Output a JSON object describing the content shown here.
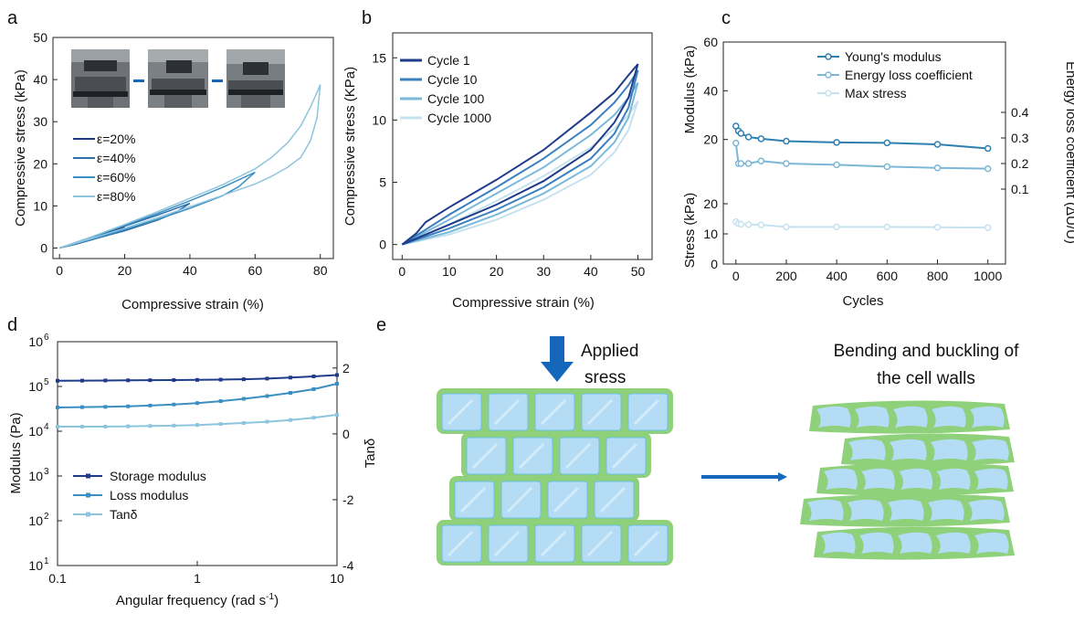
{
  "palette": {
    "navy": "#1f3b8a",
    "blue": "#2f6fae",
    "mid": "#3a8fc0",
    "light": "#8ec5de",
    "pale": "#c5e2ef",
    "arrow": "#1467bb",
    "cellFill": "#b5dcf5",
    "cellWall": "#8fd07a"
  },
  "panels": {
    "a": {
      "letter": "a",
      "image_label": "specimen-photos"
    },
    "b": {
      "letter": "b"
    },
    "c": {
      "letter": "c"
    },
    "d": {
      "letter": "d"
    },
    "e": {
      "letter": "e",
      "applied_line1": "Applied",
      "applied_line2": "sress",
      "bending_line1": "Bending and buckling of",
      "bending_line2": "the cell walls",
      "arrow_icon": "right-arrow-icon",
      "down_arrow_icon": "down-arrow-icon"
    }
  },
  "chart_data": [
    {
      "id": "a",
      "type": "line",
      "xlabel": "Compressive strain (%)",
      "ylabel": "Compressive stress (kPa)",
      "xlim": [
        -2,
        84
      ],
      "ylim": [
        -2.5,
        50
      ],
      "xticks": [
        0,
        20,
        40,
        60,
        80
      ],
      "yticks": [
        0,
        10,
        20,
        30,
        40,
        50
      ],
      "legend": "left",
      "series": [
        {
          "name": "ε=20%",
          "color": "#1f3b8a",
          "load": [
            [
              0,
              0
            ],
            [
              5,
              1.2
            ],
            [
              10,
              2.5
            ],
            [
              15,
              3.8
            ],
            [
              20,
              5.0
            ]
          ],
          "unload": [
            [
              20,
              5.0
            ],
            [
              15,
              3.3
            ],
            [
              10,
              2.0
            ],
            [
              5,
              0.9
            ],
            [
              0,
              0
            ]
          ]
        },
        {
          "name": "ε=40%",
          "color": "#2f6fae",
          "load": [
            [
              0,
              0
            ],
            [
              5,
              1.3
            ],
            [
              10,
              2.6
            ],
            [
              20,
              5.2
            ],
            [
              30,
              7.8
            ],
            [
              35,
              9.2
            ],
            [
              40,
              10.6
            ]
          ],
          "unload": [
            [
              40,
              10.6
            ],
            [
              35,
              8.2
            ],
            [
              30,
              6.6
            ],
            [
              20,
              4.1
            ],
            [
              10,
              2.0
            ],
            [
              5,
              1.0
            ],
            [
              0,
              0
            ]
          ]
        },
        {
          "name": "ε=60%",
          "color": "#3a8fc0",
          "load": [
            [
              0,
              0
            ],
            [
              10,
              2.6
            ],
            [
              20,
              5.4
            ],
            [
              30,
              8.2
            ],
            [
              40,
              11.2
            ],
            [
              50,
              14.4
            ],
            [
              55,
              16.2
            ],
            [
              60,
              18.0
            ]
          ],
          "unload": [
            [
              60,
              18.0
            ],
            [
              55,
              14.6
            ],
            [
              50,
              12.4
            ],
            [
              40,
              9.4
            ],
            [
              30,
              6.8
            ],
            [
              20,
              4.4
            ],
            [
              10,
              2.1
            ],
            [
              0,
              0
            ]
          ]
        },
        {
          "name": "ε=80%",
          "color": "#8ec5de",
          "load": [
            [
              0,
              0
            ],
            [
              10,
              2.7
            ],
            [
              20,
              5.6
            ],
            [
              30,
              8.6
            ],
            [
              40,
              11.8
            ],
            [
              50,
              15.0
            ],
            [
              60,
              18.8
            ],
            [
              65,
              21.5
            ],
            [
              70,
              25.0
            ],
            [
              74,
              29.0
            ],
            [
              77,
              33.5
            ],
            [
              79,
              37.0
            ],
            [
              80,
              38.8
            ]
          ],
          "unload": [
            [
              80,
              38.8
            ],
            [
              79,
              31.0
            ],
            [
              77,
              25.5
            ],
            [
              74,
              21.5
            ],
            [
              70,
              19.2
            ],
            [
              65,
              17.0
            ],
            [
              60,
              15.2
            ],
            [
              50,
              12.5
            ],
            [
              40,
              9.8
            ],
            [
              30,
              7.2
            ],
            [
              20,
              4.7
            ],
            [
              10,
              2.3
            ],
            [
              0,
              0
            ]
          ]
        }
      ]
    },
    {
      "id": "b",
      "type": "line",
      "xlabel": "Compressive strain (%)",
      "ylabel": "Compressive stress (KPa)",
      "xlim": [
        -2,
        53
      ],
      "ylim": [
        -1.2,
        17
      ],
      "xticks": [
        0,
        10,
        20,
        30,
        40,
        50
      ],
      "yticks": [
        0,
        5,
        10,
        15
      ],
      "legend": "top-left",
      "series": [
        {
          "name": "Cycle 1",
          "color": "#1f3b8a",
          "load": [
            [
              0,
              0
            ],
            [
              3,
              0.9
            ],
            [
              5,
              1.8
            ],
            [
              10,
              3.0
            ],
            [
              20,
              5.2
            ],
            [
              30,
              7.6
            ],
            [
              40,
              10.6
            ],
            [
              45,
              12.2
            ],
            [
              48,
              13.6
            ],
            [
              50,
              14.5
            ]
          ],
          "unload": [
            [
              50,
              14.5
            ],
            [
              48,
              11.8
            ],
            [
              45,
              9.8
            ],
            [
              40,
              7.6
            ],
            [
              30,
              5.1
            ],
            [
              20,
              3.2
            ],
            [
              10,
              1.6
            ],
            [
              5,
              0.8
            ],
            [
              0,
              0
            ]
          ]
        },
        {
          "name": "Cycle 10",
          "color": "#3a7fbf",
          "load": [
            [
              0,
              0
            ],
            [
              5,
              1.2
            ],
            [
              10,
              2.4
            ],
            [
              20,
              4.6
            ],
            [
              30,
              6.9
            ],
            [
              40,
              9.6
            ],
            [
              45,
              11.4
            ],
            [
              48,
              12.8
            ],
            [
              50,
              14.0
            ]
          ],
          "unload": [
            [
              50,
              14.0
            ],
            [
              48,
              11.0
            ],
            [
              45,
              8.9
            ],
            [
              40,
              6.9
            ],
            [
              30,
              4.6
            ],
            [
              20,
              2.8
            ],
            [
              10,
              1.3
            ],
            [
              0,
              0
            ]
          ]
        },
        {
          "name": "Cycle 100",
          "color": "#7ab9da",
          "load": [
            [
              0,
              0
            ],
            [
              5,
              1.0
            ],
            [
              10,
              2.0
            ],
            [
              20,
              4.1
            ],
            [
              30,
              6.2
            ],
            [
              40,
              8.8
            ],
            [
              45,
              10.4
            ],
            [
              48,
              11.8
            ],
            [
              50,
              13.0
            ]
          ],
          "unload": [
            [
              50,
              13.0
            ],
            [
              48,
              10.2
            ],
            [
              45,
              8.2
            ],
            [
              40,
              6.3
            ],
            [
              30,
              4.1
            ],
            [
              20,
              2.4
            ],
            [
              10,
              1.0
            ],
            [
              0,
              0
            ]
          ]
        },
        {
          "name": "Cycle 1000",
          "color": "#c5e2ef",
          "load": [
            [
              0,
              0
            ],
            [
              5,
              0.8
            ],
            [
              10,
              1.6
            ],
            [
              20,
              3.5
            ],
            [
              30,
              5.5
            ],
            [
              40,
              7.8
            ],
            [
              45,
              9.3
            ],
            [
              48,
              10.4
            ],
            [
              50,
              11.5
            ]
          ],
          "unload": [
            [
              50,
              11.5
            ],
            [
              48,
              9.2
            ],
            [
              45,
              7.4
            ],
            [
              40,
              5.6
            ],
            [
              30,
              3.6
            ],
            [
              20,
              2.0
            ],
            [
              10,
              0.8
            ],
            [
              0,
              0
            ]
          ]
        }
      ]
    },
    {
      "id": "c",
      "type": "line",
      "xlabel": "Cycles",
      "ylabel_top": "Modulus (kPa)",
      "ylabel_bottom": "Stress (kPa)",
      "ylabel_right": "Energy loss coefficient (ΔU/U)",
      "xlim": [
        -50,
        1070
      ],
      "xticks": [
        0,
        200,
        400,
        600,
        800,
        1000
      ],
      "top_yticks": [
        20,
        40,
        60
      ],
      "bottom_yticks": [
        0,
        10,
        20
      ],
      "right_yticks": [
        0.1,
        0.2,
        0.3,
        0.4
      ],
      "legend": "top-right",
      "series": [
        {
          "name": "Young's modulus",
          "color": "#2f7fb0",
          "x": [
            0,
            10,
            20,
            50,
            100,
            200,
            400,
            600,
            800,
            1000
          ],
          "y": [
            25.5,
            23.5,
            22.5,
            21.0,
            20.3,
            19.3,
            18.8,
            18.6,
            18.0,
            16.3
          ]
        },
        {
          "name": "Energy loss coefficient",
          "color": "#7db7d6",
          "x": [
            0,
            10,
            20,
            50,
            100,
            200,
            400,
            600,
            800,
            1000
          ],
          "y": [
            0.28,
            0.2,
            0.2,
            0.2,
            0.21,
            0.2,
            0.195,
            0.188,
            0.183,
            0.18
          ]
        },
        {
          "name": "Max stress",
          "color": "#c5e2ef",
          "x": [
            0,
            10,
            20,
            50,
            100,
            200,
            400,
            600,
            800,
            1000
          ],
          "y": [
            14.0,
            13.4,
            13.2,
            13.1,
            13.0,
            12.3,
            12.3,
            12.3,
            12.2,
            12.1
          ]
        }
      ]
    },
    {
      "id": "d",
      "type": "line",
      "xlabel": "Angular frequency (rad s",
      "xlabel_sup": "-1",
      "xlabel_end": ")",
      "ylabel": "Modulus (Pa)",
      "ylabel_right": "Tanδ",
      "xscale": "log",
      "yscale": "log",
      "xlim": [
        0.1,
        10
      ],
      "ylim": [
        10,
        1000000
      ],
      "right_ylim": [
        -4,
        2.8
      ],
      "xtick_labels": [
        "0.1",
        "1",
        "10"
      ],
      "ytick_exponents": [
        "1",
        "2",
        "3",
        "4",
        "5",
        "6"
      ],
      "right_yticks": [
        -4,
        -2,
        0,
        2
      ],
      "legend": "bottom-left",
      "series": [
        {
          "name": "Storage modulus",
          "color": "#1f3b8a",
          "axis": "left",
          "x": [
            0.1,
            0.15,
            0.22,
            0.32,
            0.46,
            0.68,
            1,
            1.47,
            2.15,
            3.16,
            4.64,
            6.81,
            10
          ],
          "y": [
            134000,
            135000,
            136000,
            137000,
            138000,
            139000,
            140000,
            142000,
            145000,
            150000,
            158000,
            168000,
            180000
          ]
        },
        {
          "name": "Loss modulus",
          "color": "#3a8fc0",
          "axis": "left",
          "x": [
            0.1,
            0.15,
            0.22,
            0.32,
            0.46,
            0.68,
            1,
            1.47,
            2.15,
            3.16,
            4.64,
            6.81,
            10
          ],
          "y": [
            34000,
            34500,
            35000,
            36000,
            37500,
            39500,
            42500,
            47000,
            53000,
            61000,
            72000,
            87000,
            115000
          ]
        },
        {
          "name": "Tanδ",
          "color": "#8ec5de",
          "axis": "right",
          "x": [
            0.1,
            0.15,
            0.22,
            0.32,
            0.46,
            0.68,
            1,
            1.47,
            2.15,
            3.16,
            4.64,
            6.81,
            10
          ],
          "y": [
            0.22,
            0.22,
            0.22,
            0.23,
            0.24,
            0.25,
            0.27,
            0.3,
            0.33,
            0.37,
            0.42,
            0.49,
            0.58
          ]
        }
      ]
    }
  ]
}
